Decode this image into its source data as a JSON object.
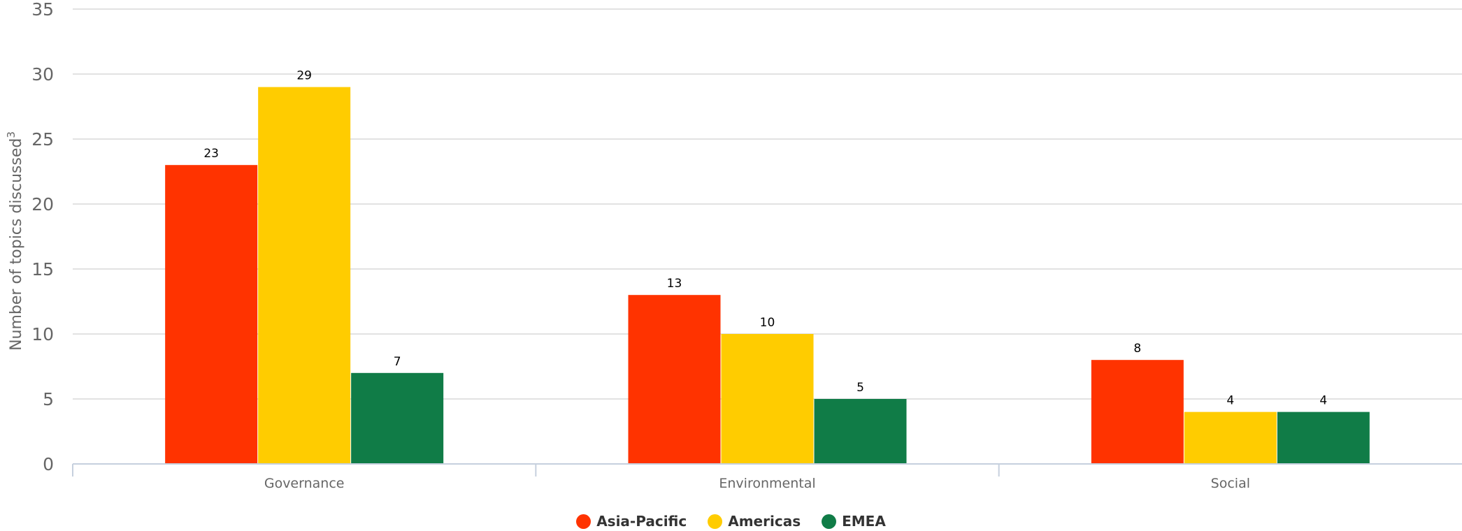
{
  "chart_data": {
    "type": "bar",
    "categories": [
      "Governance",
      "Environmental",
      "Social"
    ],
    "series": [
      {
        "name": "Asia-Pacific",
        "values": [
          23,
          13,
          8
        ],
        "color": "#ff3300"
      },
      {
        "name": "Americas",
        "values": [
          29,
          10,
          4
        ],
        "color": "#ffcc00"
      },
      {
        "name": "EMEA",
        "values": [
          7,
          5,
          4
        ],
        "color": "#107c47"
      }
    ],
    "ylabel": "Number of topics discussed",
    "ylabel_superscript": "3",
    "ylim": [
      0,
      35
    ],
    "yticks": [
      "0",
      "5",
      "10",
      "15",
      "20",
      "25",
      "30",
      "35"
    ],
    "grid": true,
    "legend_position": "bottom-center"
  }
}
